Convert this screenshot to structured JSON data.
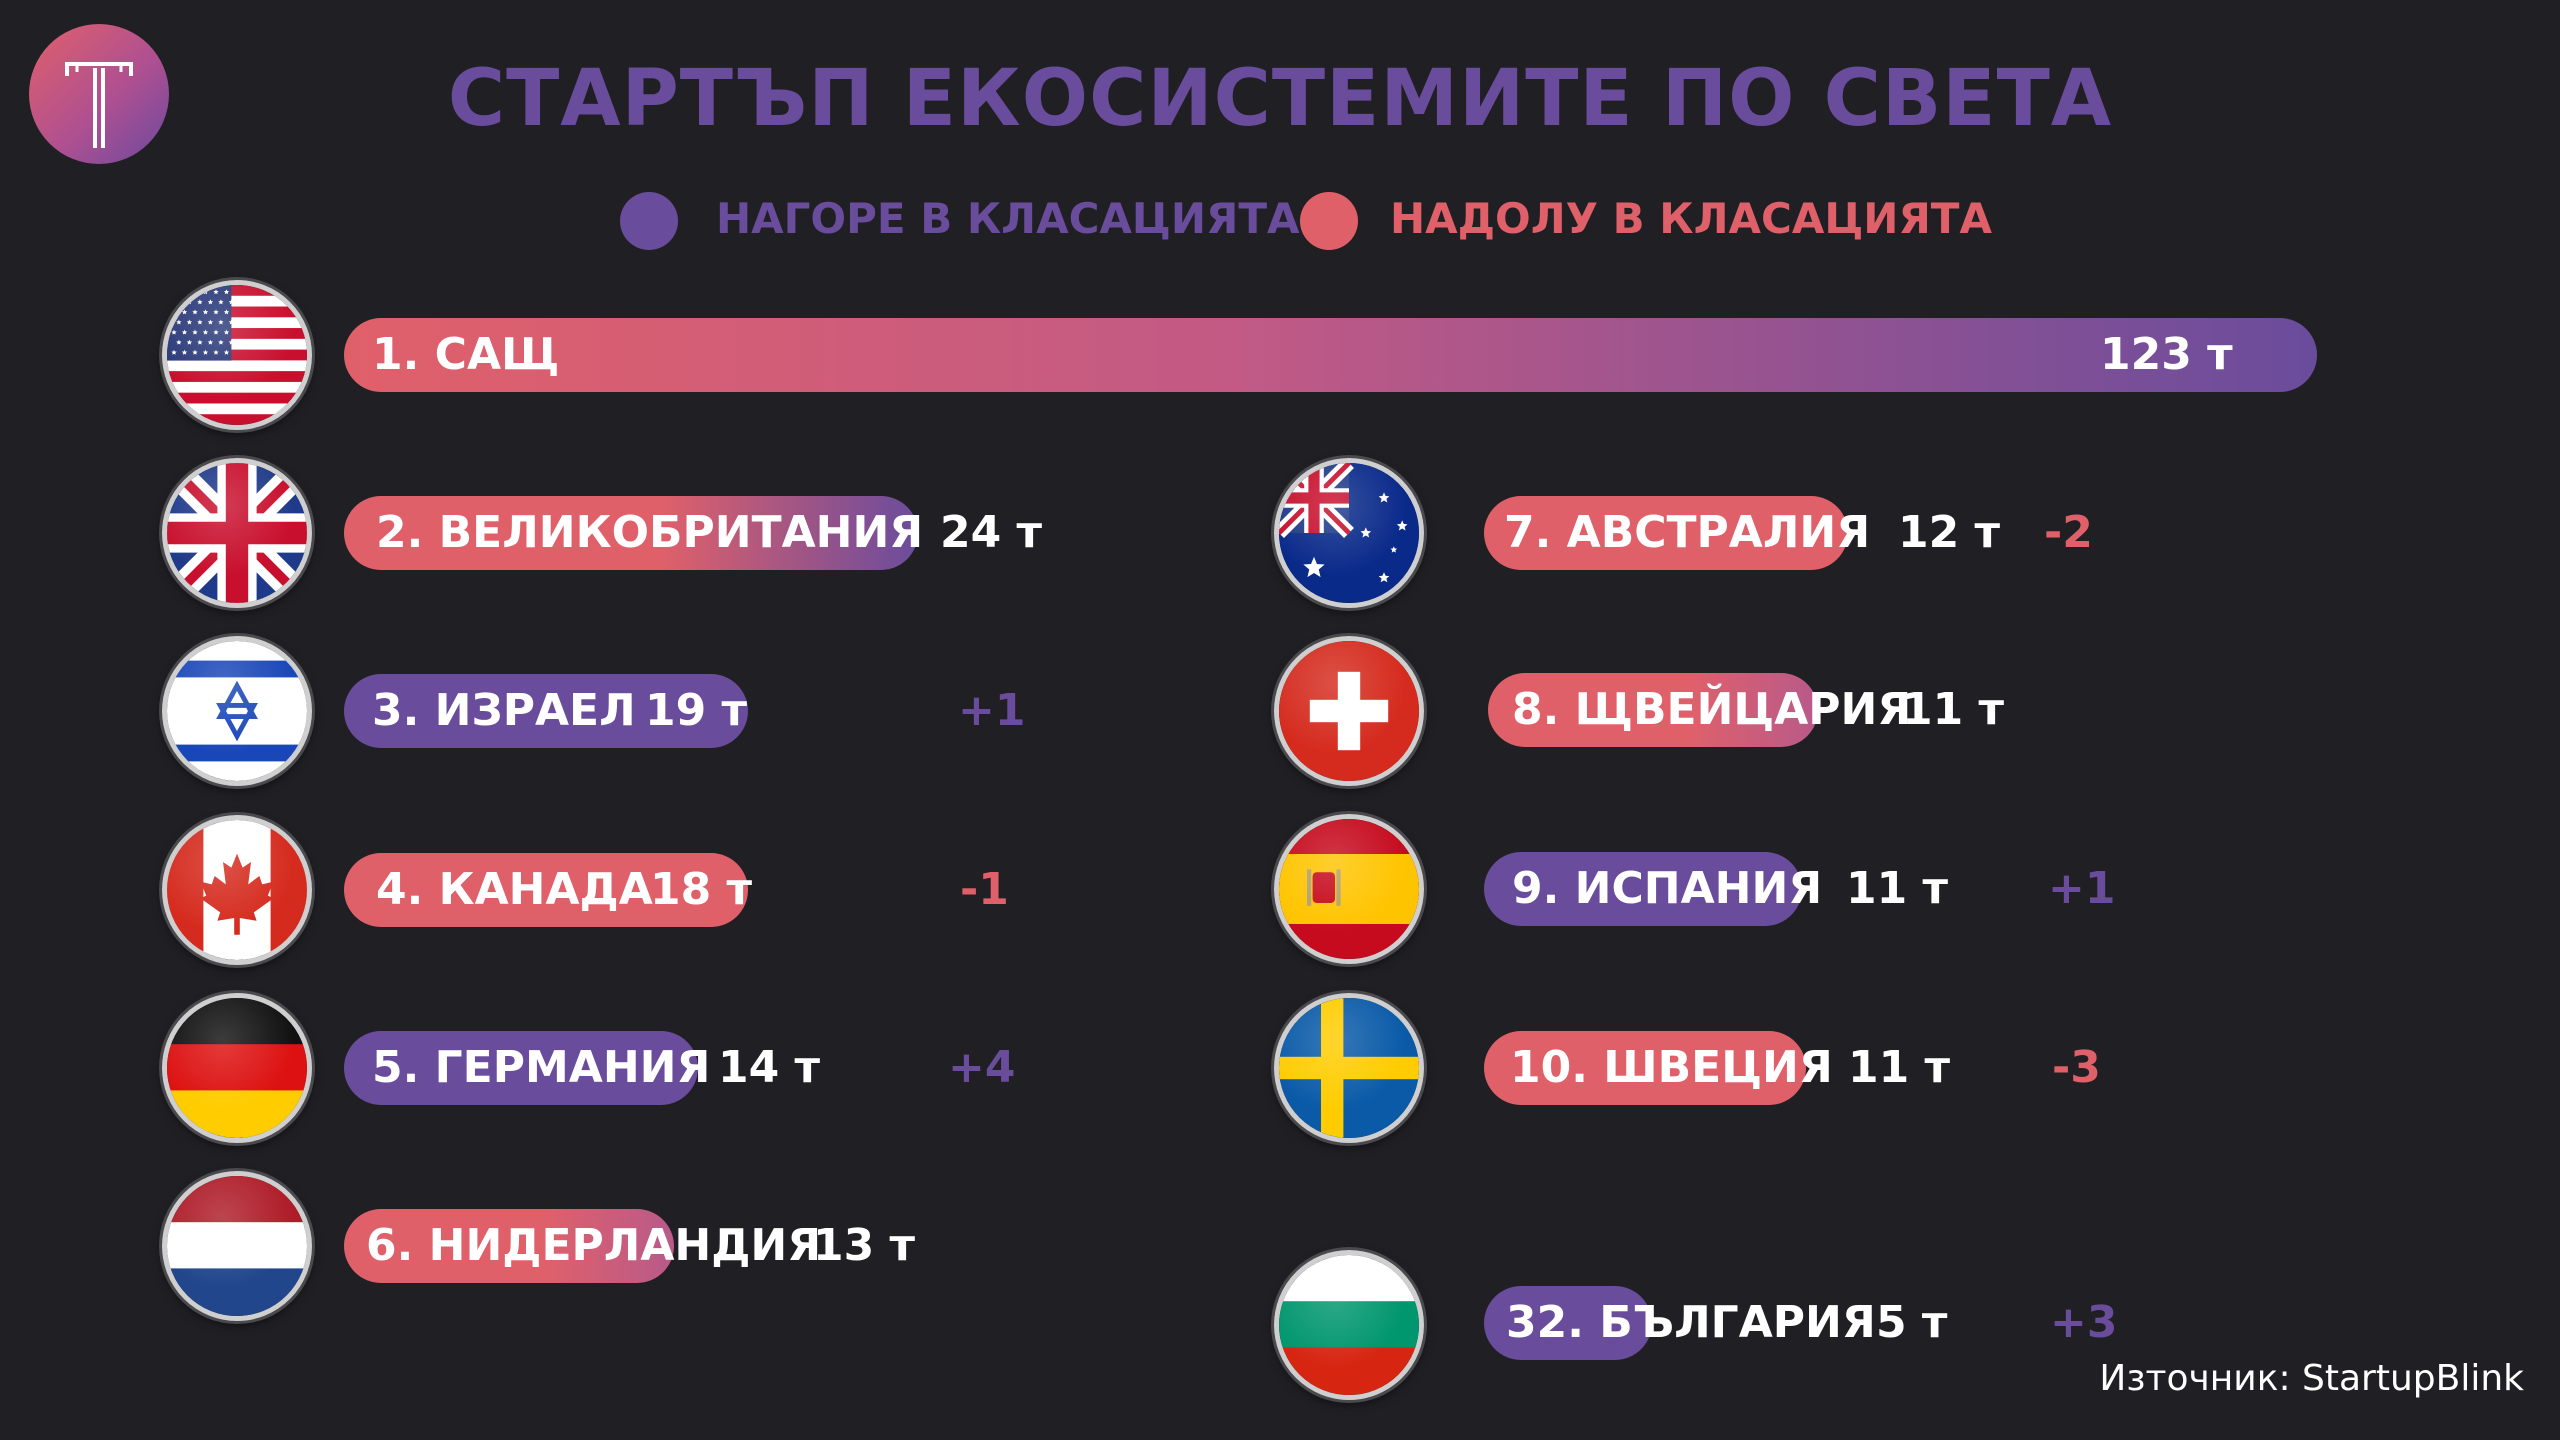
{
  "title": "СТАРТЪП ЕКОСИСТЕМИТЕ ПО СВЕТА",
  "legend": {
    "up_label": "НАГОРЕ В КЛАСАЦИЯТА",
    "down_label": "НАДОЛУ В КЛАСАЦИЯТА",
    "up_color": "#6a4c9c",
    "down_color": "#e0606a"
  },
  "source": "Източник: StartupBlink",
  "chart_data": {
    "type": "bar",
    "title": "СТАРТЪП ЕКОСИСТЕМИТЕ ПО СВЕТА",
    "unit": "т",
    "rows": [
      {
        "label": "1. САЩ",
        "value": 123,
        "value_text": "123 т",
        "change": "",
        "direction": "mixed",
        "flag": "usa-flag-icon"
      },
      {
        "label": "2. ВЕЛИКОБРИТАНИЯ",
        "value": 24,
        "value_text": "24 т",
        "change": "",
        "direction": "mixed",
        "flag": "uk-flag-icon"
      },
      {
        "label": "3. ИЗРАЕЛ",
        "value": 19,
        "value_text": "19 т",
        "change": "+1",
        "direction": "up",
        "flag": "israel-flag-icon"
      },
      {
        "label": "4. КАНАДА",
        "value": 18,
        "value_text": "18 т",
        "change": "-1",
        "direction": "down",
        "flag": "canada-flag-icon"
      },
      {
        "label": "5. ГЕРМАНИЯ",
        "value": 14,
        "value_text": "14 т",
        "change": "+4",
        "direction": "up",
        "flag": "germany-flag-icon"
      },
      {
        "label": "6. НИДЕРЛАНДИЯ",
        "value": 13,
        "value_text": "13  т",
        "change": "",
        "direction": "mixed",
        "flag": "netherlands-flag-icon"
      },
      {
        "label": "7. АВСТРАЛИЯ",
        "value": 12,
        "value_text": "12 т",
        "change": "-2",
        "direction": "down",
        "flag": "australia-flag-icon"
      },
      {
        "label": "8. ЩВЕЙЦАРИЯ",
        "value": 11,
        "value_text": "11  т",
        "change": "",
        "direction": "down",
        "flag": "switzerland-flag-icon"
      },
      {
        "label": "9. ИСПАНИЯ",
        "value": 11,
        "value_text": "11 т",
        "change": "+1",
        "direction": "up",
        "flag": "spain-flag-icon"
      },
      {
        "label": "10. ШВЕЦИЯ",
        "value": 11,
        "value_text": "11 т",
        "change": "-3",
        "direction": "down",
        "flag": "sweden-flag-icon"
      },
      {
        "label": "32. БЪЛГАРИЯ",
        "value": 5,
        "value_text": "5 т",
        "change": "+3",
        "direction": "up",
        "flag": "bulgaria-flag-icon"
      }
    ]
  }
}
